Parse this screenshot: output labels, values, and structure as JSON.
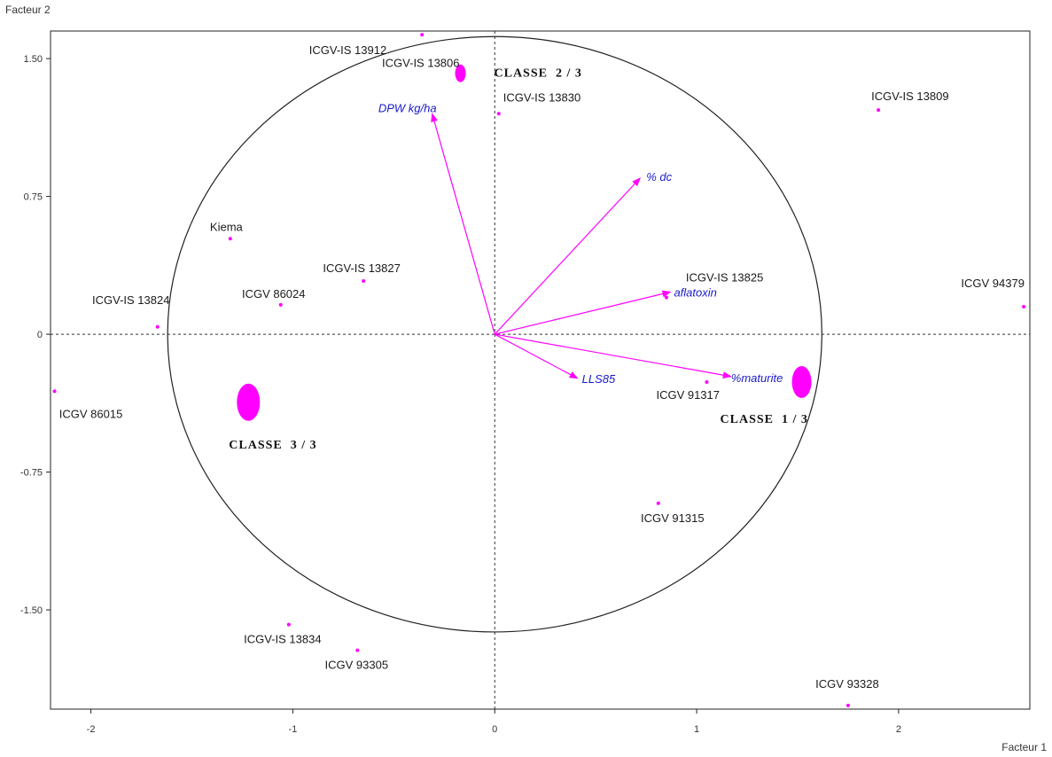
{
  "chart_data": {
    "type": "scatter",
    "title": "",
    "xlabel": "Facteur 1",
    "ylabel": "Facteur 2",
    "xlim": [
      -2.2,
      2.65
    ],
    "ylim": [
      -2.04,
      1.65
    ],
    "x_ticks": [
      -2,
      -1,
      0,
      1,
      2
    ],
    "y_ticks": [
      1.5,
      0.75,
      0,
      -0.75,
      -1.5
    ],
    "x_tick_labels": [
      "-2",
      "-1",
      "0",
      "1",
      "2"
    ],
    "y_tick_labels": [
      "1.50",
      "0.75",
      "0",
      "-0.75",
      "-1.50"
    ],
    "circle_radius": 1.62,
    "grid": false,
    "accent_color": "#ff00ff",
    "variable_color": "#1a1acc",
    "observations": [
      {
        "label": "ICGV-IS 13912",
        "x": -0.36,
        "y": 1.63
      },
      {
        "label": "ICGV-IS 13806",
        "x": -0.17,
        "y": 1.42
      },
      {
        "label": "ICGV-IS 13830",
        "x": 0.02,
        "y": 1.2
      },
      {
        "label": "ICGV-IS 13809",
        "x": 1.9,
        "y": 1.22
      },
      {
        "label": "Kiema",
        "x": -1.31,
        "y": 0.52
      },
      {
        "label": "ICGV-IS 13827",
        "x": -0.65,
        "y": 0.29
      },
      {
        "label": "ICGV 86024",
        "x": -1.06,
        "y": 0.16
      },
      {
        "label": "ICGV-IS 13824",
        "x": -1.67,
        "y": 0.04
      },
      {
        "label": "ICGV 94379",
        "x": 2.62,
        "y": 0.15
      },
      {
        "label": "ICGV-IS 13825",
        "x": 0.85,
        "y": 0.2
      },
      {
        "label": "ICGV 86015",
        "x": -2.18,
        "y": -0.31
      },
      {
        "label": "ICGV 91317",
        "x": 1.05,
        "y": -0.26
      },
      {
        "label": "ICGV 91315",
        "x": 0.81,
        "y": -0.92
      },
      {
        "label": "ICGV-IS 13834",
        "x": -1.02,
        "y": -1.58
      },
      {
        "label": "ICGV 93305",
        "x": -0.68,
        "y": -1.72
      },
      {
        "label": "ICGV 93328",
        "x": 1.75,
        "y": -2.02
      }
    ],
    "variables": [
      {
        "label": "DPW kg/ha",
        "x": -0.31,
        "y": 1.2
      },
      {
        "label": "% dc",
        "x": 0.72,
        "y": 0.85
      },
      {
        "label": "aflatoxin",
        "x": 0.87,
        "y": 0.23
      },
      {
        "label": "LLS85",
        "x": 0.41,
        "y": -0.24
      },
      {
        "label": "%maturite",
        "x": 1.17,
        "y": -0.23
      }
    ],
    "classes": [
      {
        "label": "CLASSE  2 / 3",
        "x": -0.17,
        "y": 1.42,
        "size": "small"
      },
      {
        "label": "CLASSE  1 / 3",
        "x": 1.52,
        "y": -0.26,
        "size": "medium"
      },
      {
        "label": "CLASSE  3 / 3",
        "x": -1.22,
        "y": -0.37,
        "size": "large"
      }
    ]
  }
}
